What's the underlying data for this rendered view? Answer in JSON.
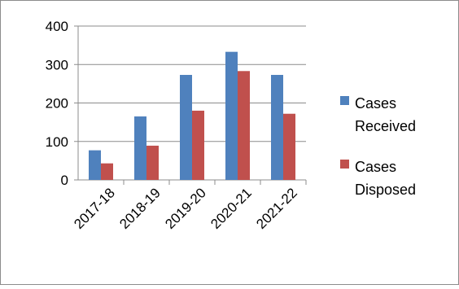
{
  "chart_data": {
    "type": "bar",
    "categories": [
      "2017-18",
      "2018-19",
      "2019-20",
      "2020-21",
      "2021-22"
    ],
    "series": [
      {
        "name": "Cases Received",
        "values": [
          77,
          165,
          273,
          333,
          273
        ],
        "color": "#4F81BD"
      },
      {
        "name": "Cases Disposed",
        "values": [
          43,
          89,
          180,
          283,
          172
        ],
        "color": "#C0504D"
      }
    ],
    "ylim": [
      0,
      400
    ],
    "yticks": [
      0,
      100,
      200,
      300,
      400
    ],
    "grid": true,
    "legend_position": "right",
    "legend": [
      {
        "line1": "Cases",
        "line2": "Received"
      },
      {
        "line1": "Cases",
        "line2": "Disposed"
      }
    ]
  }
}
